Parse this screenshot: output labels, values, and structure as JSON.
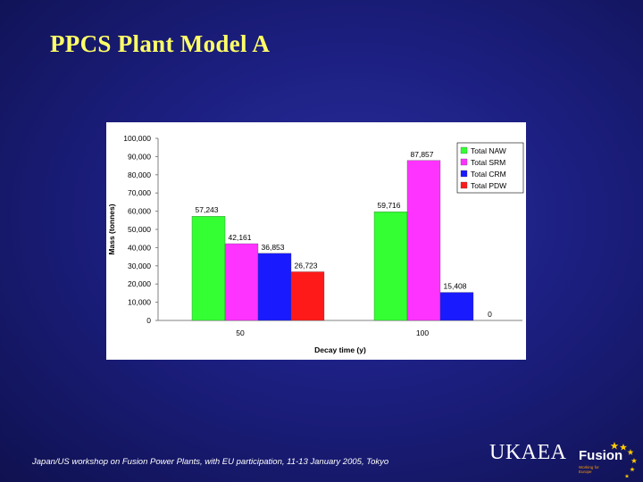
{
  "slide": {
    "title": "PPCS Plant Model A",
    "footer": "Japan/US workshop on Fusion Power Plants, with EU participation, 11-13 January 2005, Tokyo"
  },
  "logo": {
    "org": "UKAEA",
    "product": "Fusion",
    "tagline": "Working for Europe",
    "icon": "eu-stars-icon"
  },
  "colors": {
    "background": "#1c1f80",
    "title": "#ffff66",
    "series": [
      "#33ff33",
      "#ff33ff",
      "#1a1aff",
      "#ff1a1a"
    ]
  },
  "chart_data": {
    "type": "bar",
    "title": "",
    "xlabel": "Decay time (y)",
    "ylabel": "Mass (tonnes)",
    "categories": [
      "50",
      "100"
    ],
    "ylim": [
      0,
      100000
    ],
    "yticks": [
      "0",
      "10,000",
      "20,000",
      "30,000",
      "40,000",
      "50,000",
      "60,000",
      "70,000",
      "80,000",
      "90,000",
      "100,000"
    ],
    "grid": false,
    "legend": "top-right",
    "series": [
      {
        "name": "Total NAW",
        "color": "#33ff33",
        "values": [
          57243,
          59716
        ],
        "labels": [
          "57,243",
          "59,716"
        ]
      },
      {
        "name": "Total SRM",
        "color": "#ff33ff",
        "values": [
          42161,
          87857
        ],
        "labels": [
          "42,161",
          "87,857"
        ]
      },
      {
        "name": "Total CRM",
        "color": "#1a1aff",
        "values": [
          36853,
          15408
        ],
        "labels": [
          "36,853",
          "15,408"
        ]
      },
      {
        "name": "Total PDW",
        "color": "#ff1a1a",
        "values": [
          26723,
          0
        ],
        "labels": [
          "26,723",
          "0"
        ]
      }
    ]
  }
}
